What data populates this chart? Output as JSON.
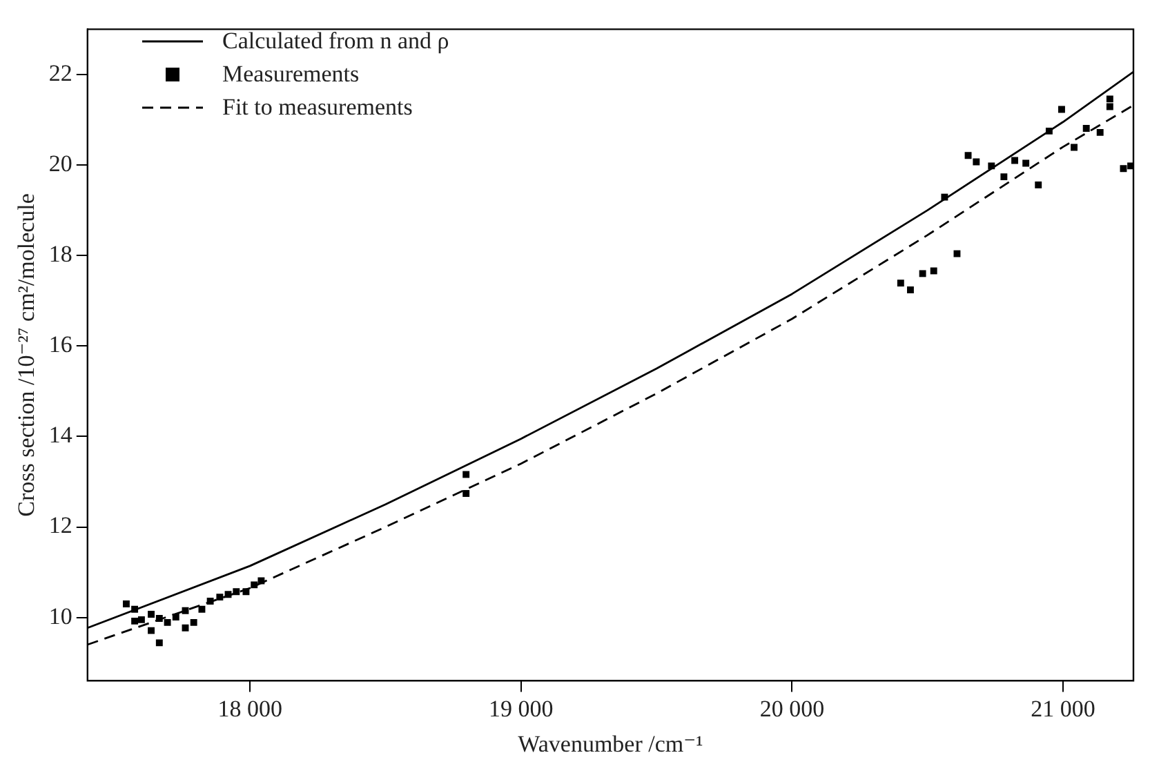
{
  "chart_data": {
    "type": "line",
    "xlabel": "Wavenumber /cm⁻¹",
    "ylabel": "Cross section /10⁻²⁷ cm²/molecule",
    "xlim": [
      17400,
      21260
    ],
    "xticks": [
      {
        "value": 18000,
        "label": "18 000"
      },
      {
        "value": 19000,
        "label": "19 000"
      },
      {
        "value": 20000,
        "label": "20 000"
      },
      {
        "value": 21000,
        "label": "21 000"
      }
    ],
    "ylim": [
      8.6,
      23.0
    ],
    "yticks": [
      10,
      12,
      14,
      16,
      18,
      20,
      22
    ],
    "grid": false,
    "legend": "top left",
    "series": [
      {
        "name": "Calculated from n and ρ",
        "color": "#000000",
        "line_style": "solid",
        "marker": "none",
        "x": [
          17400,
          18000,
          18500,
          19000,
          19500,
          20000,
          20500,
          21000,
          21260
        ],
        "values": [
          9.77,
          11.14,
          12.5,
          13.95,
          15.5,
          17.15,
          19.0,
          20.95,
          22.06
        ]
      },
      {
        "name": "Measurements",
        "type": "scatter",
        "color": "#000000",
        "marker": "square",
        "x": [
          17543,
          17574,
          17574,
          17599,
          17635,
          17635,
          17665,
          17665,
          17695,
          17726,
          17761,
          17761,
          17792,
          17822,
          17853,
          17888,
          17919,
          17949,
          17985,
          18015,
          18041,
          18797,
          18797,
          20401,
          20437,
          20482,
          20523,
          20609,
          20563,
          20650,
          20680,
          20736,
          20782,
          20822,
          20863,
          20909,
          20949,
          20995,
          21041,
          21086,
          21137,
          21173,
          21173,
          21223,
          21250
        ],
        "values": [
          10.3,
          10.18,
          9.92,
          9.95,
          10.07,
          9.71,
          9.98,
          9.44,
          9.89,
          10.01,
          10.15,
          9.77,
          9.89,
          10.18,
          10.36,
          10.45,
          10.51,
          10.57,
          10.57,
          10.72,
          10.81,
          13.16,
          12.74,
          17.39,
          17.24,
          17.6,
          17.66,
          18.04,
          19.29,
          20.21,
          20.07,
          19.98,
          19.74,
          20.1,
          20.04,
          19.56,
          20.75,
          21.23,
          20.39,
          20.81,
          20.72,
          21.46,
          21.29,
          19.92,
          19.98
        ]
      },
      {
        "name": "Fit to measurements",
        "color": "#000000",
        "line_style": "dashed",
        "marker": "none",
        "x": [
          17400,
          18000,
          18500,
          19000,
          19500,
          20000,
          20500,
          21000,
          21260
        ],
        "values": [
          9.4,
          10.65,
          12.0,
          13.4,
          14.95,
          16.6,
          18.45,
          20.4,
          21.32
        ]
      }
    ]
  }
}
